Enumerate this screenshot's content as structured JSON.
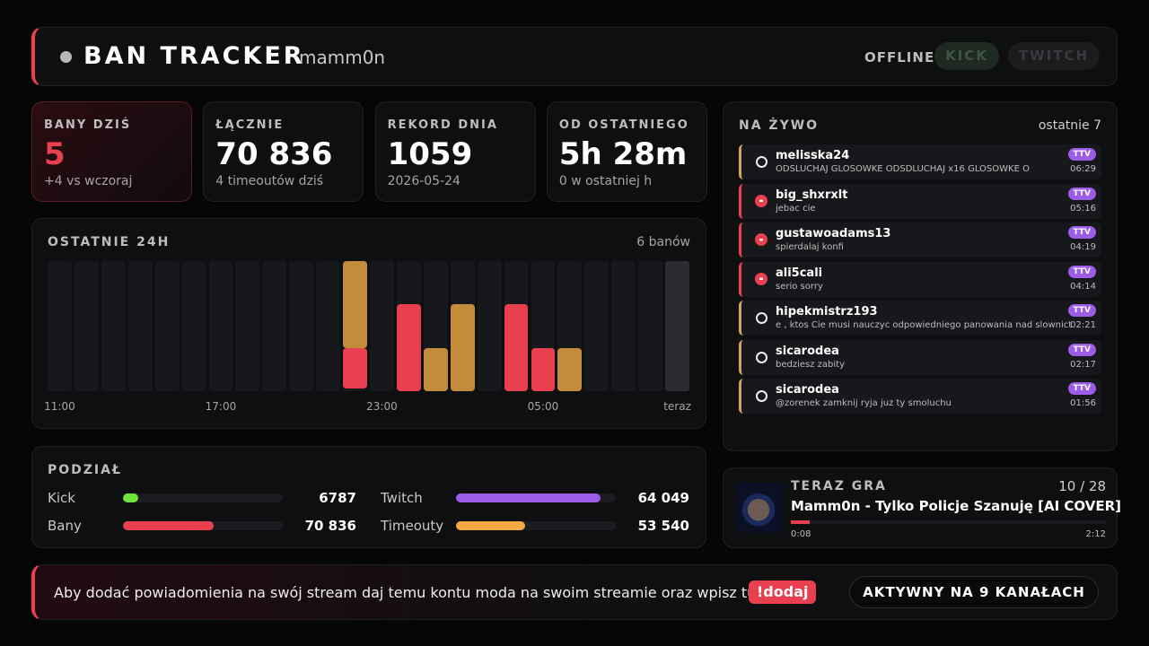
{
  "header": {
    "title": "BAN TRACKER",
    "channel": "mamm0n",
    "status": "OFFLINE",
    "buttons": [
      "KICK",
      "TWITCH"
    ]
  },
  "stats": [
    {
      "label": "BANY DZIŚ",
      "value": "5",
      "note": "+4 vs wczoraj"
    },
    {
      "label": "ŁĄCZNIE",
      "value": "70 836",
      "note": "4 timeoutów dziś"
    },
    {
      "label": "REKORD DNIA",
      "value": "1059",
      "note": "2026-05-24"
    },
    {
      "label": "OD OSTATNIEGO",
      "value": "5h 28m",
      "note": "0 w ostatniej h"
    }
  ],
  "chart_data": {
    "type": "bar",
    "stacked": true,
    "title": "OSTATNIE 24H",
    "summary": "6 banów",
    "categories": [
      "11:00",
      null,
      null,
      null,
      null,
      null,
      "17:00",
      null,
      null,
      null,
      null,
      null,
      "23:00",
      null,
      null,
      null,
      null,
      null,
      "05:00",
      null,
      null,
      null,
      null,
      "teraz"
    ],
    "series": [
      {
        "color": "#e8404f",
        "values": [
          0,
          0,
          0,
          0,
          0,
          0,
          0,
          0,
          0,
          0,
          0,
          1,
          0,
          2,
          0,
          0,
          0,
          2,
          1,
          0,
          0,
          0,
          0,
          0
        ]
      },
      {
        "color": "#c48c3a",
        "values": [
          0,
          0,
          0,
          0,
          0,
          0,
          0,
          0,
          0,
          0,
          0,
          2,
          0,
          0,
          1,
          2,
          0,
          0,
          0,
          1,
          0,
          0,
          0,
          0
        ]
      }
    ]
  },
  "breakdown": {
    "title": "PODZIAŁ",
    "groups": [
      {
        "names": [
          "Kick",
          "Twitch"
        ],
        "colors": [
          "#6fe33a",
          "#9d5ce6"
        ],
        "values": [
          6787,
          64049
        ],
        "value_labels": [
          "6787",
          "64 049"
        ]
      },
      {
        "names": [
          "Bany",
          "Timeouty"
        ],
        "colors": [
          "#e8404f",
          "#f1a845"
        ],
        "values": [
          70836,
          53540
        ],
        "value_labels": [
          "70 836",
          "53 540"
        ]
      }
    ]
  },
  "live": {
    "title": "NA ŻYWO",
    "note": "ostatnie 7",
    "entries": [
      {
        "user": "melisska24",
        "message": "ODSLUCHAJ GLOSOWKE ODSDLUCHAJ x16 GLOSOWKE O",
        "platform": "TTV",
        "time": "06:29",
        "type": "timeout"
      },
      {
        "user": "big_shxrxlt",
        "message": "jebac cie",
        "platform": "TTV",
        "time": "05:16",
        "type": "ban"
      },
      {
        "user": "gustawoadams13",
        "message": "spierdalaj konfi",
        "platform": "TTV",
        "time": "04:19",
        "type": "ban"
      },
      {
        "user": "ali5cali",
        "message": "serio sorry",
        "platform": "TTV",
        "time": "04:14",
        "type": "ban"
      },
      {
        "user": "hipekmistrz193",
        "message": "e , ktos Cie musi nauczyc odpowiedniego panowania nad slownict",
        "platform": "TTV",
        "time": "02:21",
        "type": "timeout"
      },
      {
        "user": "sicarodea",
        "message": "bedziesz zabity",
        "platform": "TTV",
        "time": "02:17",
        "type": "timeout"
      },
      {
        "user": "sicarodea",
        "message": "@zorenek zamknij ryja juz ty smoluchu",
        "platform": "TTV",
        "time": "01:56",
        "type": "timeout"
      }
    ]
  },
  "now_playing": {
    "label": "TERAZ GRA",
    "position": "10 / 28",
    "song": "Mamm0n - Tylko Policje Szanuję [AI COVER]",
    "elapsed": "0:08",
    "duration": "2:12"
  },
  "footer": {
    "text": "Aby dodać powiadomienia na swój stream daj temu kontu moda na swoim streamie oraz wpisz tu",
    "command": "!dodaj",
    "badge": "AKTYWNY NA 9 KANAŁACH"
  }
}
